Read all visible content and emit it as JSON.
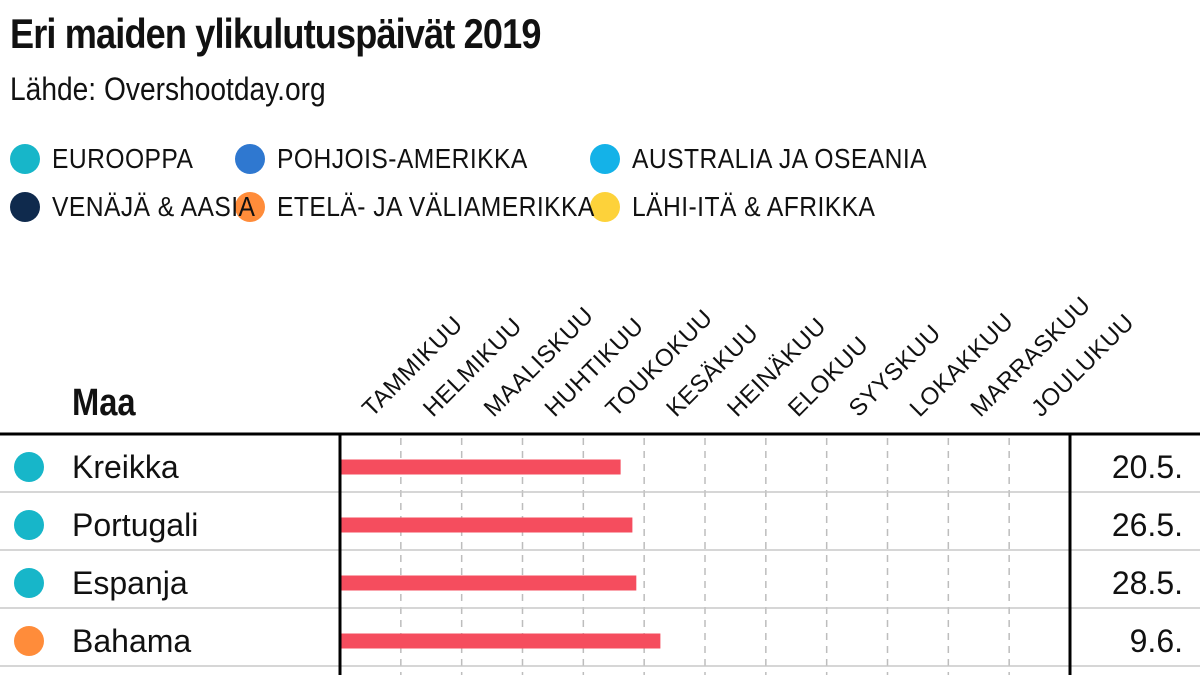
{
  "title": "Eri maiden ylikulutuspäivät 2019",
  "subtitle": "Lähde: Overshootday.org",
  "colors": {
    "bar": "#f54d5e",
    "text": "#111111",
    "grid": "#bdbdbd",
    "row_line": "#c8c8c8"
  },
  "legend": [
    {
      "label": "EUROOPPA",
      "color": "#17b6c9"
    },
    {
      "label": "POHJOIS-AMERIKKA",
      "color": "#2f78d0"
    },
    {
      "label": "AUSTRALIA JA OSEANIA",
      "color": "#14b2e8"
    },
    {
      "label": "VENÄJÄ & AASIA",
      "color": "#0f2a4d"
    },
    {
      "label": "ETELÄ- JA VÄLIAMERIKKA",
      "color": "#ff8c3a"
    },
    {
      "label": "LÄHI-ITÄ & AFRIKKA",
      "color": "#fdd23a"
    }
  ],
  "table_header": {
    "country": "Maa"
  },
  "chart_data": {
    "type": "bar",
    "orientation": "horizontal",
    "title": "Eri maiden ylikulutuspäivät 2019",
    "subtitle": "Lähde: Overshootday.org",
    "x_tick_labels": [
      "TAMMIKUU",
      "HELMIKUU",
      "MAALISKUU",
      "HUHTIKUU",
      "TOUKOKUU",
      "KESÄKUU",
      "HEINÄKUU",
      "ELOKUU",
      "SYYSKUU",
      "LOKAKKUU",
      "MARRASKUU",
      "JOULUKUU"
    ],
    "xlim_months": [
      0,
      12
    ],
    "grid": true,
    "rows": [
      {
        "country": "Kreikka",
        "region": "EUROOPPA",
        "date_label": "20.5.",
        "date": "2019-05-20"
      },
      {
        "country": "Portugali",
        "region": "EUROOPPA",
        "date_label": "26.5.",
        "date": "2019-05-26"
      },
      {
        "country": "Espanja",
        "region": "EUROOPPA",
        "date_label": "28.5.",
        "date": "2019-05-28"
      },
      {
        "country": "Bahama",
        "region": "ETELÄ- JA VÄLIAMERIKKA",
        "date_label": "9.6.",
        "date": "2019-06-09"
      }
    ]
  }
}
